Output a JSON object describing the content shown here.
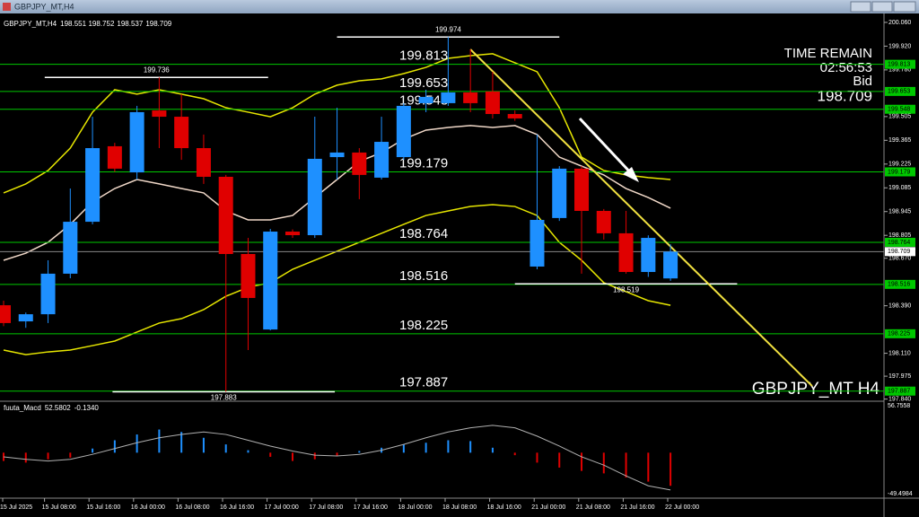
{
  "chart_data": {
    "type": "candlestick",
    "title": "GBPJPY_MT,H4",
    "watermark": "GBPJPY_MT H4",
    "timer_label": "TIME REMAIN",
    "time_remaining": "02:56:53",
    "bid_label": "Bid",
    "up_color": "#1e90ff",
    "down_color": "#e00000",
    "candles": [
      {
        "open": 198.393,
        "high": 198.42,
        "low": 198.27,
        "close": 198.288
      },
      {
        "open": 198.298,
        "high": 198.35,
        "low": 198.26,
        "close": 198.34
      },
      {
        "open": 198.34,
        "high": 198.658,
        "low": 198.288,
        "close": 198.579
      },
      {
        "open": 198.579,
        "high": 199.081,
        "low": 198.552,
        "close": 198.885
      },
      {
        "open": 198.885,
        "high": 199.504,
        "low": 198.87,
        "close": 199.319
      },
      {
        "open": 199.33,
        "high": 199.35,
        "low": 199.18,
        "close": 199.198
      },
      {
        "open": 199.176,
        "high": 199.568,
        "low": 199.134,
        "close": 199.531
      },
      {
        "open": 199.541,
        "high": 199.736,
        "low": 199.319,
        "close": 199.504
      },
      {
        "open": 199.504,
        "high": 199.637,
        "low": 199.25,
        "close": 199.319
      },
      {
        "open": 199.319,
        "high": 199.399,
        "low": 199.108,
        "close": 199.15
      },
      {
        "open": 199.15,
        "high": 199.161,
        "low": 197.883,
        "close": 198.695
      },
      {
        "open": 198.695,
        "high": 198.79,
        "low": 198.129,
        "close": 198.436
      },
      {
        "open": 198.25,
        "high": 198.843,
        "low": 198.245,
        "close": 198.827
      },
      {
        "open": 198.827,
        "high": 198.84,
        "low": 198.79,
        "close": 198.806
      },
      {
        "open": 198.806,
        "high": 199.504,
        "low": 198.79,
        "close": 199.256
      },
      {
        "open": 199.266,
        "high": 199.557,
        "low": 199.134,
        "close": 199.293
      },
      {
        "open": 199.293,
        "high": 199.319,
        "low": 199.018,
        "close": 199.161
      },
      {
        "open": 199.145,
        "high": 199.504,
        "low": 199.134,
        "close": 199.356
      },
      {
        "open": 199.266,
        "high": 199.584,
        "low": 199.25,
        "close": 199.568
      },
      {
        "open": 199.584,
        "high": 199.663,
        "low": 199.531,
        "close": 199.621
      },
      {
        "open": 199.584,
        "high": 199.974,
        "low": 199.568,
        "close": 199.647
      },
      {
        "open": 199.647,
        "high": 199.901,
        "low": 199.531,
        "close": 199.584
      },
      {
        "open": 199.653,
        "high": 199.769,
        "low": 199.494,
        "close": 199.52
      },
      {
        "open": 199.52,
        "high": 199.541,
        "low": 199.48,
        "close": 199.494
      },
      {
        "open": 198.621,
        "high": 199.399,
        "low": 198.605,
        "close": 198.896
      },
      {
        "open": 198.907,
        "high": 199.213,
        "low": 198.89,
        "close": 199.198
      },
      {
        "open": 199.198,
        "high": 199.213,
        "low": 198.579,
        "close": 198.949
      },
      {
        "open": 198.949,
        "high": 198.96,
        "low": 198.78,
        "close": 198.817
      },
      {
        "open": 198.817,
        "high": 198.949,
        "low": 198.579,
        "close": 198.589
      },
      {
        "open": 198.589,
        "high": 198.805,
        "low": 198.56,
        "close": 198.79
      },
      {
        "open": 198.551,
        "high": 198.752,
        "low": 198.537,
        "close": 198.709
      }
    ],
    "bands": [
      {
        "color": "#e6e600",
        "values": [
          199.055,
          199.108,
          199.187,
          199.319,
          199.531,
          199.663,
          199.637,
          199.663,
          199.637,
          199.61,
          199.557,
          199.531,
          199.504,
          199.557,
          199.637,
          199.69,
          199.716,
          199.727,
          199.758,
          199.795,
          199.848,
          199.864,
          199.875,
          199.822,
          199.769,
          199.557,
          199.266,
          199.187,
          199.161,
          199.145,
          199.134
        ]
      },
      {
        "color": "#f0d8c8",
        "values": [
          198.658,
          198.7,
          198.764,
          198.87,
          199.002,
          199.081,
          199.134,
          199.108,
          199.081,
          199.055,
          198.949,
          198.896,
          198.896,
          198.922,
          199.028,
          199.134,
          199.24,
          199.293,
          199.372,
          199.425,
          199.441,
          199.452,
          199.441,
          199.452,
          199.399,
          199.266,
          199.213,
          199.161,
          199.081,
          199.028,
          198.965
        ]
      },
      {
        "color": "#e6e600",
        "values": [
          198.129,
          198.102,
          198.118,
          198.129,
          198.155,
          198.182,
          198.235,
          198.288,
          198.314,
          198.367,
          198.446,
          198.499,
          198.526,
          198.605,
          198.658,
          198.711,
          198.764,
          198.817,
          198.87,
          198.922,
          198.949,
          198.975,
          198.986,
          198.975,
          198.922,
          198.764,
          198.658,
          198.526,
          198.473,
          198.42,
          198.393
        ]
      }
    ],
    "levels": {
      "color": "#00c800",
      "values": [
        199.813,
        199.653,
        199.548,
        199.179,
        198.764,
        198.516,
        198.225,
        197.887
      ]
    },
    "annotations": {
      "color": "#ffffff",
      "values": [
        199.736,
        199.974,
        197.883,
        198.519
      ]
    },
    "trendline": {
      "color": "#f0e040",
      "values": [
        199.901,
        197.917
      ]
    },
    "ylim": [
      197.838,
      200.102
    ],
    "yticks": [
      {
        "value": 200.06,
        "label": "200.060"
      },
      {
        "value": 199.92,
        "label": "199.920"
      },
      {
        "value": 199.78,
        "label": "199.780"
      },
      199.505,
      199.365,
      199.225,
      199.085,
      198.945,
      198.805,
      {
        "value": 198.67,
        "label": "198.670"
      },
      {
        "value": 198.39,
        "label": "198.390"
      },
      {
        "value": 198.11,
        "label": "198.110"
      },
      197.975,
      {
        "value": 197.84,
        "label": "197.840"
      }
    ],
    "x_labels": [
      "15 Jul 2025",
      "15 Jul 08:00",
      "15 Jul 16:00",
      "16 Jul 00:00",
      "16 Jul 08:00",
      "16 Jul 16:00",
      "17 Jul 00:00",
      "17 Jul 08:00",
      "17 Jul 16:00",
      "18 Jul 00:00",
      "18 Jul 08:00",
      "18 Jul 16:00",
      "21 Jul 00:00",
      "21 Jul 08:00",
      "21 Jul 16:00",
      "22 Jul 00:00"
    ],
    "macd": {
      "name": "fuuta_Macd",
      "params": [
        "52.5802",
        "-0.1340"
      ],
      "ylim": [
        -49.4984,
        56.7558
      ],
      "histogram": [
        -10,
        -12,
        -8,
        -6,
        5,
        15,
        22,
        28,
        25,
        18,
        10,
        3,
        -5,
        -10,
        -8,
        -4,
        2,
        6,
        10,
        12,
        15,
        14,
        6,
        -3,
        -12,
        -18,
        -22,
        -25,
        -30,
        -35,
        -40
      ],
      "signal": [
        -5,
        -8,
        -10,
        -8,
        -2,
        5,
        12,
        18,
        22,
        25,
        22,
        15,
        8,
        2,
        -3,
        -4,
        -2,
        3,
        10,
        18,
        25,
        30,
        33,
        30,
        20,
        8,
        -5,
        -15,
        -28,
        -40,
        -45
      ],
      "signal_color": "#b0b0b0"
    }
  }
}
